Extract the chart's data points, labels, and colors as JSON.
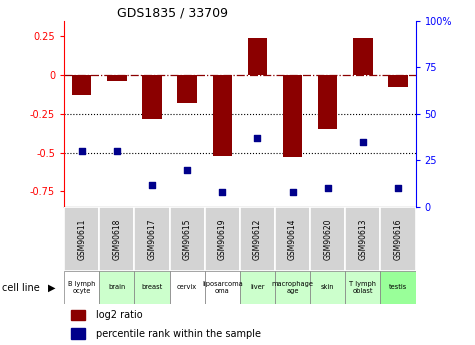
{
  "title": "GDS1835 / 33709",
  "samples": [
    "GSM90611",
    "GSM90618",
    "GSM90617",
    "GSM90615",
    "GSM90619",
    "GSM90612",
    "GSM90614",
    "GSM90620",
    "GSM90613",
    "GSM90616"
  ],
  "cell_lines": [
    "B lymph\nocyte",
    "brain",
    "breast",
    "cervix",
    "liposarcoma\noma",
    "liver",
    "macrophage\nage",
    "skin",
    "T lymph\noblast",
    "testis"
  ],
  "cell_line_colors": [
    "#ffffff",
    "#ccffcc",
    "#ccffcc",
    "#ffffff",
    "#ffffff",
    "#ccffcc",
    "#ccffcc",
    "#ccffcc",
    "#ccffcc",
    "#99ff99"
  ],
  "log2_ratio": [
    -0.13,
    -0.04,
    -0.28,
    -0.18,
    -0.52,
    0.24,
    -0.53,
    -0.35,
    0.24,
    -0.08
  ],
  "percentile_rank": [
    30,
    30,
    12,
    20,
    8,
    37,
    8,
    10,
    35,
    10
  ],
  "bar_color": "#8B0000",
  "dot_color": "#00008B",
  "ylim_left": [
    -0.85,
    0.35
  ],
  "ylim_right": [
    0,
    100
  ],
  "yticks_left": [
    0.25,
    0,
    -0.25,
    -0.5,
    -0.75
  ],
  "yticks_right": [
    100,
    75,
    50,
    25,
    0
  ],
  "dotted_lines": [
    -0.25,
    -0.5
  ],
  "background_color": "#ffffff"
}
